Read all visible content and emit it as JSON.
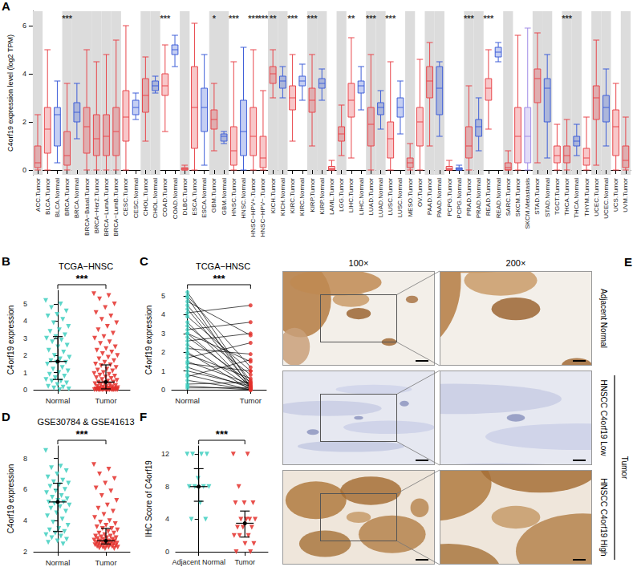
{
  "chart_data": [
    {
      "panel_label": "A",
      "type": "boxplot",
      "y_label": "C4orf19 expression level (log2 TPM)",
      "categories": [
        "ACC.Tumor",
        "BLCA.Tumor",
        "BLCA.Normal",
        "BRCA.Tumor",
        "BRCA.Normal",
        "BRCA−Basal.Tumor",
        "BRCA−Her2.Tumor",
        "BRCA−LumA.Tumor",
        "BRCA−LumB.Tumor",
        "CESC.Tumor",
        "CESC.Normal",
        "CHOL.Tumor",
        "CHOL.Normal",
        "COAD.Tumor",
        "COAD.Normal",
        "DLBC.Tumor",
        "ESCA.Tumor",
        "ESCA.Normal",
        "GBM.Tumor",
        "GBM.Normal",
        "HNSC.Tumor",
        "HNSC.Normal",
        "HNSC−HPV+.Tumor",
        "HNSC−HPV−.Tumor",
        "KICH.Tumor",
        "KICH.Normal",
        "KIRC.Tumor",
        "KIRC.Normal",
        "KIRP.Tumor",
        "KIRP.Normal",
        "LAML.Tumor",
        "LGG.Tumor",
        "LIHC.Tumor",
        "LIHC.Normal",
        "LUAD.Tumor",
        "LUAD.Normal",
        "LUSC.Tumor",
        "LUSC.Normal",
        "MESO.Tumor",
        "OV.Tumor",
        "PAAD.Tumor",
        "PAAD.Normal",
        "PCPG.Tumor",
        "PCPG.Normal",
        "PRAD.Tumor",
        "PRAD.Normal",
        "READ.Tumor",
        "READ.Normal",
        "SARC.Tumor",
        "SKCM.Tumor",
        "SKCM.Metastasis",
        "STAD.Tumor",
        "STAD.Normal",
        "TGCT.Tumor",
        "THCA.Tumor",
        "THCA.Normal",
        "THYM.Tumor",
        "UCEC.Tumor",
        "UCEC.Normal",
        "UCS.Tumor",
        "UVM.Tumor"
      ],
      "boxes": [
        [
          0,
          0.1,
          0.3,
          1.0,
          2.3
        ],
        [
          0,
          0.7,
          1.7,
          2.6,
          5.0
        ],
        [
          0.3,
          1.0,
          2.3,
          2.6,
          3.7
        ],
        [
          0,
          0.2,
          0.6,
          1.6,
          3.6
        ],
        [
          1.3,
          2.0,
          2.4,
          2.8,
          3.6
        ],
        [
          0,
          0.7,
          1.8,
          2.6,
          5.0
        ],
        [
          0,
          0.6,
          1.3,
          2.3,
          4.5
        ],
        [
          0,
          0.6,
          1.4,
          2.3,
          4.8
        ],
        [
          0,
          0.6,
          1.6,
          2.6,
          5.4
        ],
        [
          0,
          1.2,
          2.2,
          3.3,
          6.0
        ],
        [
          2.1,
          2.3,
          2.6,
          2.9,
          3.2
        ],
        [
          1.2,
          2.4,
          3.1,
          3.8,
          4.7
        ],
        [
          3.2,
          3.3,
          3.5,
          3.7,
          3.9
        ],
        [
          1.6,
          3.1,
          3.5,
          4.0,
          5.2
        ],
        [
          4.3,
          4.8,
          5.0,
          5.2,
          5.6
        ],
        [
          0,
          0,
          0.05,
          0.1,
          0.2
        ],
        [
          0,
          0.9,
          2.6,
          4.3,
          6.1
        ],
        [
          0.2,
          1.6,
          2.6,
          3.4,
          4.8
        ],
        [
          0.8,
          1.7,
          2.1,
          2.5,
          3.6
        ],
        [
          1.1,
          1.2,
          1.4,
          1.5,
          1.6
        ],
        [
          0,
          0.2,
          0.8,
          1.8,
          4.5
        ],
        [
          0,
          0.6,
          1.6,
          2.9,
          5.1
        ],
        [
          0,
          0.6,
          1.4,
          2.6,
          5.0
        ],
        [
          0,
          0.1,
          0.5,
          1.4,
          3.3
        ],
        [
          3.0,
          3.6,
          4.0,
          4.3,
          5.0
        ],
        [
          3.0,
          3.4,
          3.7,
          3.9,
          4.3
        ],
        [
          1.2,
          2.5,
          3.0,
          3.5,
          4.8
        ],
        [
          2.9,
          3.5,
          3.7,
          3.9,
          4.4
        ],
        [
          1.0,
          2.4,
          2.9,
          3.4,
          4.8
        ],
        [
          2.9,
          3.4,
          3.6,
          3.8,
          4.2
        ],
        [
          0,
          0,
          0.05,
          0.15,
          0.4
        ],
        [
          0.6,
          1.2,
          1.5,
          1.8,
          2.7
        ],
        [
          0.5,
          2.2,
          2.9,
          3.6,
          5.5
        ],
        [
          2.5,
          3.2,
          3.5,
          3.7,
          4.3
        ],
        [
          0,
          1.0,
          1.9,
          2.6,
          4.8
        ],
        [
          1.7,
          2.3,
          2.6,
          2.8,
          3.3
        ],
        [
          0,
          0.5,
          1.3,
          2.0,
          4.5
        ],
        [
          1.5,
          2.2,
          2.6,
          3.0,
          3.7
        ],
        [
          0,
          0.1,
          0.3,
          0.5,
          1.1
        ],
        [
          0,
          1.0,
          2.0,
          2.6,
          4.6
        ],
        [
          1.0,
          3.0,
          3.7,
          4.3,
          5.3
        ],
        [
          1.4,
          2.3,
          3.4,
          4.3,
          4.5
        ],
        [
          0,
          0,
          0.05,
          0.15,
          0.4
        ],
        [
          0,
          0,
          0.05,
          0.1,
          0.2
        ],
        [
          0,
          0.5,
          1.0,
          1.8,
          3.5
        ],
        [
          0.8,
          1.4,
          1.8,
          2.1,
          3.0
        ],
        [
          1.7,
          2.9,
          3.4,
          3.8,
          5.0
        ],
        [
          4.5,
          4.7,
          4.9,
          5.1,
          5.3
        ],
        [
          0,
          0,
          0.1,
          0.3,
          0.8
        ],
        [
          0,
          0.3,
          1.4,
          2.6,
          5.6
        ],
        [
          0,
          0.3,
          1.4,
          2.6,
          5.9
        ],
        [
          0.3,
          2.8,
          3.8,
          4.2,
          5.7
        ],
        [
          0.5,
          2.0,
          3.4,
          3.8,
          4.8
        ],
        [
          0,
          0.3,
          0.6,
          1.0,
          1.9
        ],
        [
          0,
          0.3,
          0.6,
          1.0,
          2.1
        ],
        [
          0.6,
          1.0,
          1.2,
          1.4,
          1.9
        ],
        [
          0,
          0.2,
          0.5,
          0.9,
          2.2
        ],
        [
          0.2,
          2.1,
          3.0,
          3.5,
          5.4
        ],
        [
          1.0,
          2.0,
          2.6,
          3.1,
          4.2
        ],
        [
          0,
          0.6,
          1.8,
          2.5,
          3.6
        ],
        [
          0,
          0.1,
          0.4,
          1.0,
          2.2
        ]
      ],
      "colors": [
        "#e8474c",
        "#e8474c",
        "#3f5fd8",
        "#e8474c",
        "#3f5fd8",
        "#e8474c",
        "#e8474c",
        "#e8474c",
        "#e8474c",
        "#e8474c",
        "#3f5fd8",
        "#e8474c",
        "#3f5fd8",
        "#e8474c",
        "#3f5fd8",
        "#e8474c",
        "#e8474c",
        "#3f5fd8",
        "#e8474c",
        "#3f5fd8",
        "#e8474c",
        "#3f5fd8",
        "#e8474c",
        "#e8474c",
        "#e8474c",
        "#3f5fd8",
        "#e8474c",
        "#3f5fd8",
        "#e8474c",
        "#3f5fd8",
        "#e8474c",
        "#e8474c",
        "#e8474c",
        "#3f5fd8",
        "#e8474c",
        "#3f5fd8",
        "#e8474c",
        "#3f5fd8",
        "#e8474c",
        "#e8474c",
        "#e8474c",
        "#3f5fd8",
        "#e8474c",
        "#3f5fd8",
        "#e8474c",
        "#3f5fd8",
        "#e8474c",
        "#3f5fd8",
        "#e8474c",
        "#e8474c",
        "#a08ce6",
        "#e8474c",
        "#3f5fd8",
        "#e8474c",
        "#e8474c",
        "#3f5fd8",
        "#e8474c",
        "#e8474c",
        "#3f5fd8",
        "#e8474c",
        "#e8474c"
      ],
      "annotations": [
        {
          "category": "BRCA.Tumor",
          "text": "***"
        },
        {
          "category": "COAD.Tumor",
          "text": "***"
        },
        {
          "category": "GBM.Tumor",
          "text": "*"
        },
        {
          "category": "HNSC.Tumor",
          "text": "***"
        },
        {
          "category": "HNSC−HPV+.Tumor",
          "text": "***"
        },
        {
          "category": "HNSC−HPV−.Tumor",
          "text": "***"
        },
        {
          "category": "KICH.Tumor",
          "text": "**"
        },
        {
          "category": "KIRC.Tumor",
          "text": "***"
        },
        {
          "category": "KIRP.Tumor",
          "text": "***"
        },
        {
          "category": "LIHC.Tumor",
          "text": "**"
        },
        {
          "category": "LUAD.Tumor",
          "text": "***"
        },
        {
          "category": "LUSC.Tumor",
          "text": "***"
        },
        {
          "category": "PRAD.Tumor",
          "text": "***"
        },
        {
          "category": "READ.Tumor",
          "text": "***"
        },
        {
          "category": "THCA.Tumor",
          "text": "***"
        }
      ],
      "ylim": [
        -0.2,
        6.6
      ],
      "yticks": [
        0,
        2,
        4,
        6
      ],
      "grid": false
    },
    {
      "panel_label": "B",
      "type": "scatter",
      "title": "TCGA−HNSC",
      "y_label": "C4orf19 expression",
      "categories": [
        "Normal",
        "Tumor"
      ],
      "colors": [
        "#40cfc0",
        "#e4302b"
      ],
      "marker": "triangle-down",
      "values": [
        [
          5.2,
          5.0,
          4.8,
          4.6,
          4.4,
          4.3,
          4.1,
          3.9,
          3.7,
          3.5,
          3.4,
          3.2,
          3.1,
          3.0,
          2.9,
          2.8,
          2.6,
          2.5,
          2.3,
          2.2,
          2.0,
          1.9,
          1.8,
          1.7,
          1.6,
          1.6,
          1.5,
          1.3,
          1.2,
          1.1,
          1.0,
          0.9,
          0.8,
          0.7,
          0.6,
          0.5,
          0.5,
          0.4,
          0.3,
          0.2,
          0.15,
          0.1,
          0.05,
          0
        ],
        [
          5.6,
          5.5,
          5.3,
          5.0,
          4.8,
          4.5,
          4.3,
          4.1,
          3.9,
          3.7,
          3.5,
          3.3,
          3.1,
          3.0,
          2.8,
          2.7,
          2.5,
          2.4,
          2.3,
          2.2,
          2.1,
          2.0,
          1.9,
          1.8,
          1.7,
          1.6,
          1.5,
          1.45,
          1.4,
          1.3,
          1.2,
          1.15,
          1.1,
          1.0,
          0.95,
          0.9,
          0.85,
          0.8,
          0.75,
          0.7,
          0.65,
          0.6,
          0.55,
          0.5,
          0.45,
          0.45,
          0.4,
          0.35,
          0.3,
          0.3,
          0.25,
          0.2,
          0.2,
          0.18,
          0.15,
          0.12,
          0.1,
          0.1,
          0.08,
          0.06,
          0.05,
          0.05,
          0.04,
          0.03,
          0.02,
          0.02,
          0.01,
          0.01,
          0,
          0,
          0,
          0,
          0,
          0,
          0,
          0,
          0,
          0,
          0,
          0
        ]
      ],
      "medians": [
        1.65,
        0.45
      ],
      "q1": [
        0.6,
        0.05
      ],
      "q3": [
        3.1,
        1.45
      ],
      "annotations": [
        {
          "text": "***"
        }
      ],
      "ylim": [
        0,
        5.8
      ],
      "yticks": [
        0,
        1,
        2,
        3,
        4,
        5
      ],
      "grid": false
    },
    {
      "panel_label": "C",
      "type": "paired",
      "title": "TCGA−HNSC",
      "y_label": "C4orf19 expression",
      "categories": [
        "Normal",
        "Tumor"
      ],
      "colors": [
        "#40cfc0",
        "#e4302b"
      ],
      "marker": "circle",
      "pairs": [
        [
          5.2,
          0.3
        ],
        [
          5.0,
          1.2
        ],
        [
          4.9,
          0.1
        ],
        [
          4.7,
          2.9
        ],
        [
          4.5,
          0.5
        ],
        [
          4.3,
          0.2
        ],
        [
          4.1,
          4.5
        ],
        [
          3.9,
          1.0
        ],
        [
          3.6,
          0.1
        ],
        [
          3.4,
          0.8
        ],
        [
          3.2,
          3.6
        ],
        [
          3.0,
          0.2
        ],
        [
          3.0,
          1.5
        ],
        [
          2.8,
          0.4
        ],
        [
          2.6,
          3.0
        ],
        [
          2.4,
          0.1
        ],
        [
          2.2,
          1.9
        ],
        [
          2.0,
          0.0
        ],
        [
          1.9,
          0.6
        ],
        [
          1.7,
          2.5
        ],
        [
          1.5,
          0.3
        ],
        [
          1.4,
          1.0
        ],
        [
          1.2,
          0.1
        ],
        [
          1.0,
          0.2
        ],
        [
          0.8,
          0.0
        ],
        [
          0.7,
          1.6
        ],
        [
          0.5,
          0.0
        ],
        [
          0.3,
          0.4
        ],
        [
          0.2,
          0.0
        ],
        [
          0.1,
          0.1
        ]
      ],
      "annotations": [
        {
          "text": "***"
        }
      ],
      "ylim": [
        0,
        5.3
      ],
      "yticks": [
        0,
        1,
        2,
        3,
        4,
        5
      ],
      "grid": false
    },
    {
      "panel_label": "D",
      "type": "scatter",
      "title": "GSE30784 & GSE41613",
      "y_label": "C4orf19 expression",
      "categories": [
        "Normal",
        "Tumor"
      ],
      "colors": [
        "#40cfc0",
        "#e4302b"
      ],
      "marker": "triangle-down",
      "values": [
        [
          8.5,
          7.5,
          7.4,
          7.2,
          7.0,
          6.8,
          6.6,
          6.5,
          6.4,
          6.3,
          6.2,
          6.0,
          5.9,
          5.8,
          5.6,
          5.5,
          5.4,
          5.3,
          5.2,
          5.2,
          5.1,
          5.0,
          4.9,
          4.8,
          4.6,
          4.5,
          4.3,
          4.1,
          3.9,
          3.7,
          3.5,
          3.4,
          3.3,
          3.2,
          3.1,
          3.0,
          2.9,
          2.8,
          2.7,
          2.6,
          2.5
        ],
        [
          7.6,
          7.3,
          7.0,
          6.7,
          6.4,
          6.1,
          5.9,
          5.6,
          5.3,
          5.0,
          4.8,
          4.6,
          4.4,
          4.2,
          4.0,
          3.9,
          3.8,
          3.7,
          3.6,
          3.5,
          3.5,
          3.4,
          3.3,
          3.2,
          3.2,
          3.1,
          3.0,
          3.0,
          2.95,
          2.9,
          2.9,
          2.85,
          2.8,
          2.8,
          2.75,
          2.7,
          2.7,
          2.7,
          2.65,
          2.6,
          2.6,
          2.6,
          2.55,
          2.55,
          2.5,
          2.5,
          2.5,
          2.45,
          2.45,
          2.4,
          2.4,
          2.4,
          2.35,
          2.35,
          2.3,
          2.3,
          2.3,
          2.25,
          2.2,
          2.2
        ]
      ],
      "medians": [
        5.2,
        2.7
      ],
      "q1": [
        3.3,
        2.5
      ],
      "q3": [
        6.4,
        3.5
      ],
      "annotations": [
        {
          "text": "***"
        }
      ],
      "ylim": [
        2,
        8.8
      ],
      "yticks": [
        2,
        4,
        6,
        8
      ],
      "grid": false
    },
    {
      "panel_label": "F",
      "type": "scatter",
      "y_label": "IHC Score of C4orf19",
      "categories": [
        "Adjacent Normal",
        "Tumor"
      ],
      "colors": [
        "#40cfc0",
        "#e4302b"
      ],
      "marker": "triangle-down",
      "values": [
        [
          12,
          12,
          12,
          12,
          9,
          8,
          8,
          8,
          8,
          6,
          4,
          4
        ],
        [
          12,
          12,
          8,
          6,
          6,
          6,
          4,
          4,
          4,
          4,
          3,
          3,
          3,
          2,
          2,
          2,
          1,
          1,
          0,
          0
        ]
      ],
      "medians": [
        8,
        3.5
      ],
      "q1": [
        6.2,
        1.8
      ],
      "q3": [
        10.2,
        5
      ],
      "annotations": [
        {
          "text": "***"
        }
      ],
      "ylim": [
        0,
        13
      ],
      "yticks": [
        0,
        4,
        8,
        12
      ],
      "grid": false
    }
  ],
  "image_panel": {
    "panel_label": "E",
    "columns": [
      "100×",
      "200×"
    ],
    "rows": [
      "Adjacent Normal",
      "HNSCC C4orf19 Low",
      "HNSCC C4orf19 High"
    ],
    "group_label": "Tumor"
  }
}
